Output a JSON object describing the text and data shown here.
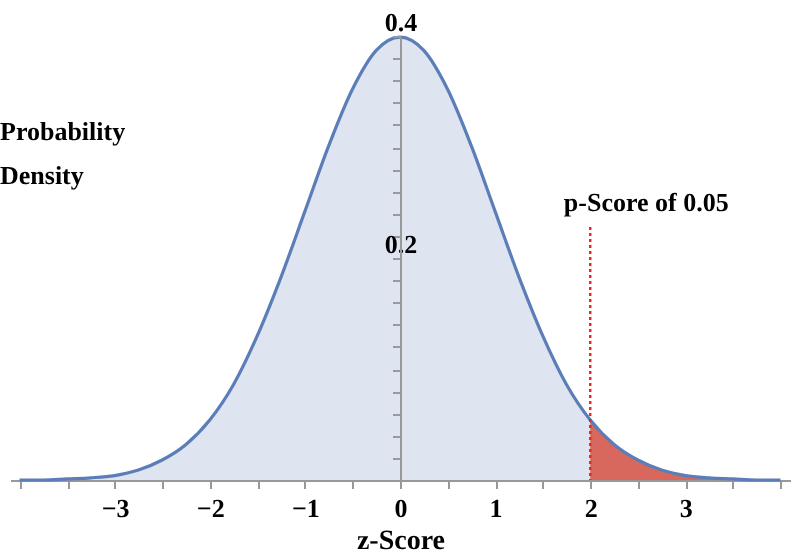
{
  "chart_data": {
    "type": "area",
    "xlabel": "z-Score",
    "ylabel": "Probability Density",
    "xlim": [
      -4.1,
      4.1
    ],
    "ylim": [
      0,
      0.4
    ],
    "xticks": [
      {
        "value": -4,
        "label": null
      },
      {
        "value": -3.5,
        "label": null
      },
      {
        "value": -3,
        "label": "−3"
      },
      {
        "value": -2.5,
        "label": null
      },
      {
        "value": -2,
        "label": "−2"
      },
      {
        "value": -1.5,
        "label": null
      },
      {
        "value": -1,
        "label": "−1"
      },
      {
        "value": -0.5,
        "label": null
      },
      0,
      {
        "value": 0.5,
        "label": null
      },
      1,
      {
        "value": 1.5,
        "label": null
      },
      2,
      {
        "value": 2.5,
        "label": null
      },
      3,
      {
        "value": 3.5,
        "label": null
      },
      {
        "value": 4,
        "label": null
      }
    ],
    "yticks": [
      {
        "value": 0.02,
        "label": null
      },
      {
        "value": 0.04,
        "label": null
      },
      {
        "value": 0.06,
        "label": null
      },
      {
        "value": 0.08,
        "label": null
      },
      {
        "value": 0.1,
        "label": null
      },
      {
        "value": 0.12,
        "label": null
      },
      {
        "value": 0.14,
        "label": null
      },
      {
        "value": 0.16,
        "label": null
      },
      {
        "value": 0.18,
        "label": null
      },
      0.2,
      {
        "value": 0.22,
        "label": null
      },
      {
        "value": 0.24,
        "label": null
      },
      {
        "value": 0.26,
        "label": null
      },
      {
        "value": 0.28,
        "label": null
      },
      {
        "value": 0.3,
        "label": null
      },
      {
        "value": 0.32,
        "label": null
      },
      {
        "value": 0.34,
        "label": null
      },
      {
        "value": 0.36,
        "label": null
      },
      {
        "value": 0.38,
        "label": null
      },
      0.4
    ],
    "series": [
      {
        "line_style": "solid",
        "color": "#5b7db8",
        "x": [
          -4,
          -3.75,
          -3.5,
          -3.25,
          -3,
          -2.75,
          -2.5,
          -2.25,
          -2,
          -1.75,
          -1.5,
          -1.25,
          -1,
          -0.75,
          -0.5,
          -0.25,
          0,
          0.25,
          0.5,
          0.75,
          1,
          1.25,
          1.5,
          1.75,
          2,
          2.25,
          2.5,
          2.75,
          3,
          3.25,
          3.5,
          3.75,
          4
        ],
        "values": [
          0.0,
          0.0,
          0.001,
          0.002,
          0.004,
          0.009,
          0.018,
          0.032,
          0.054,
          0.086,
          0.13,
          0.183,
          0.242,
          0.301,
          0.352,
          0.387,
          0.399,
          0.387,
          0.352,
          0.301,
          0.242,
          0.183,
          0.13,
          0.086,
          0.054,
          0.032,
          0.018,
          0.009,
          0.004,
          0.002,
          0.001,
          0.0,
          0.0
        ]
      },
      {
        "color": "#d8685d",
        "x": [
          2,
          2.25,
          2.5,
          2.75,
          3,
          3.25,
          3.5,
          3.75,
          4
        ],
        "values": [
          0.054,
          0.032,
          0.018,
          0.009,
          0.004,
          0.002,
          0.001,
          0.0,
          0.0
        ]
      }
    ],
    "ref_lines": [
      {
        "axis": "x",
        "value": 2,
        "label": "p-Score of 0.05",
        "color": "#e8261c",
        "line_style": "dotted"
      }
    ],
    "grid": false
  }
}
